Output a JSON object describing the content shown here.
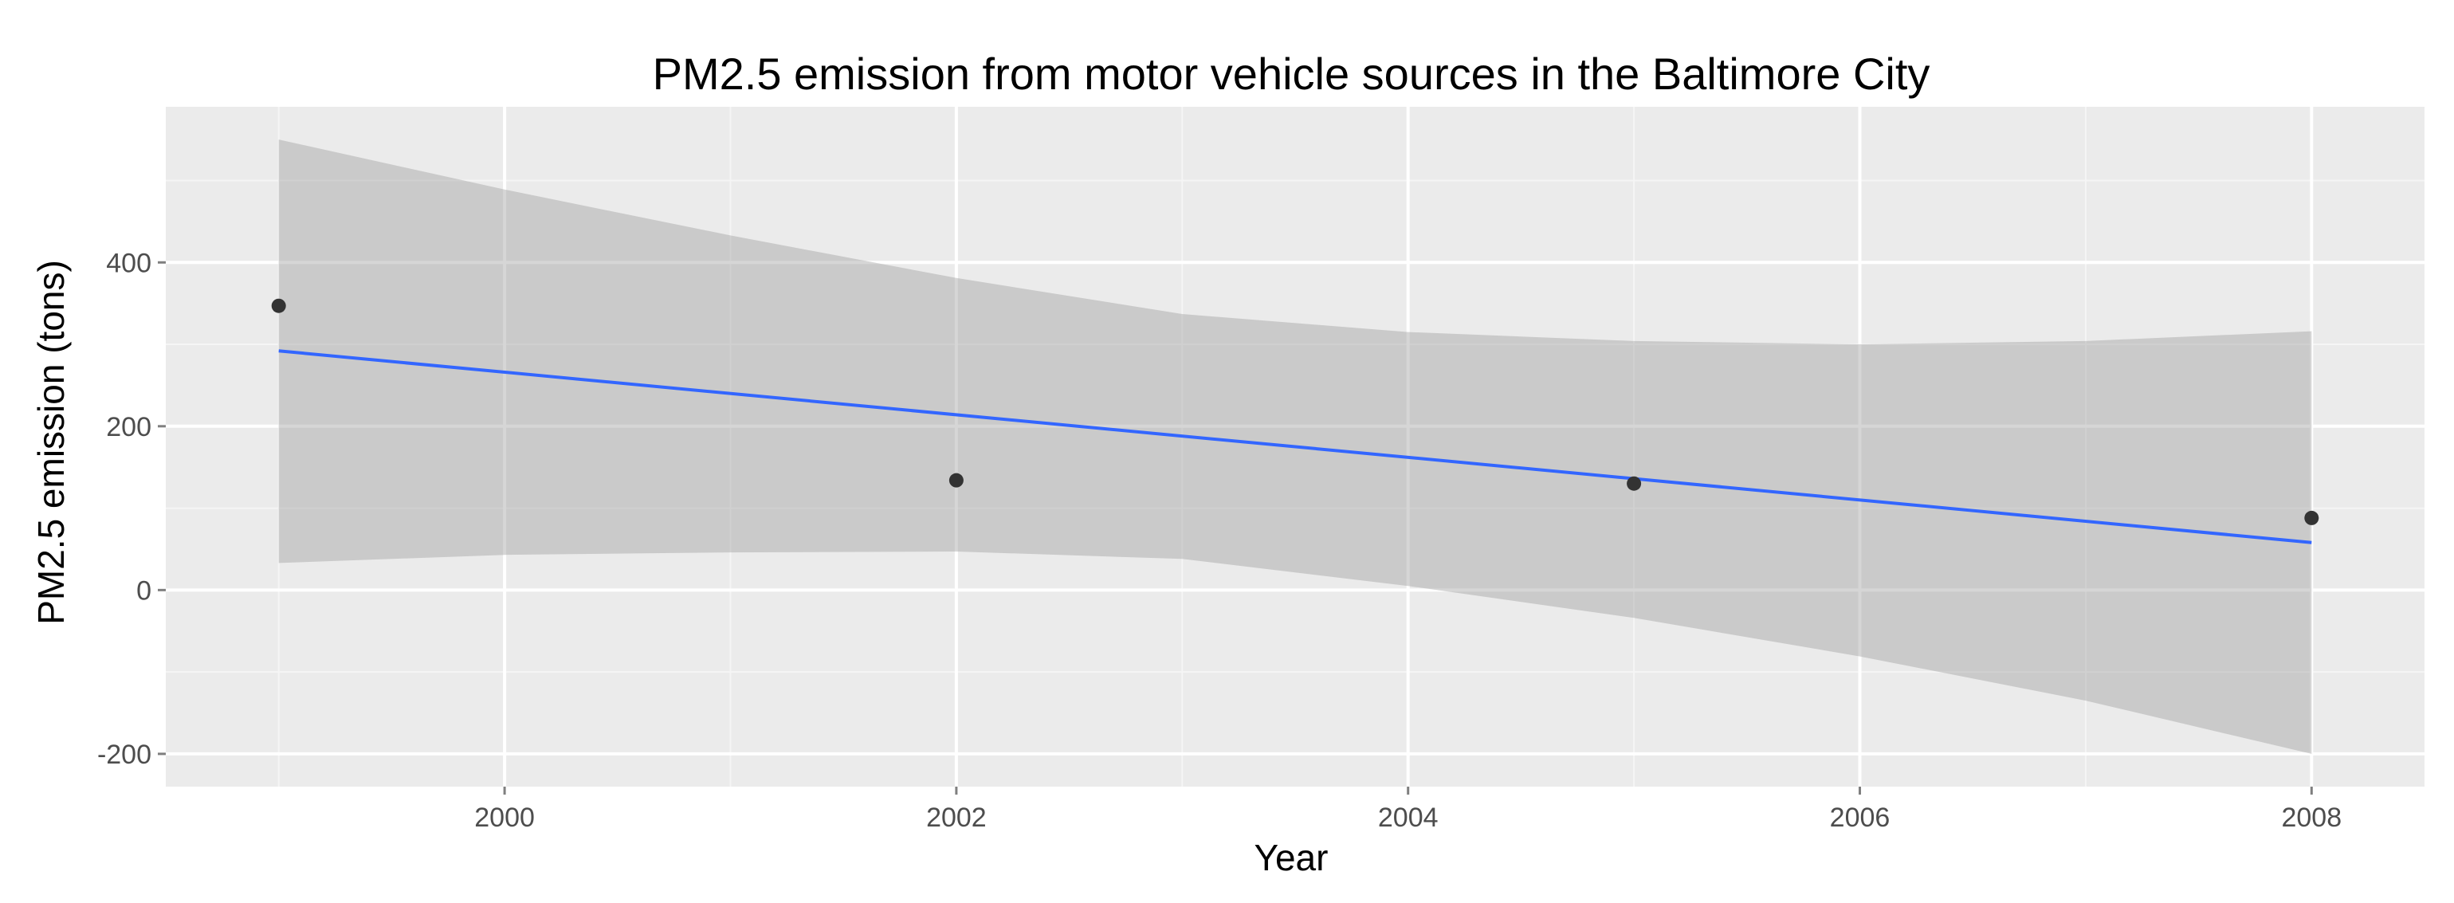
{
  "chart_data": {
    "type": "scatter",
    "title": "PM2.5 emission from motor vehicle sources in the Baltimore City",
    "xlabel": "Year",
    "ylabel": "PM2.5 emission (tons)",
    "xlim": [
      1998.5,
      2008.5
    ],
    "ylim": [
      -240,
      590
    ],
    "x_ticks": [
      2000,
      2002,
      2004,
      2006,
      2008
    ],
    "x_tick_labels": [
      "2000",
      "2002",
      "2004",
      "2006",
      "2008"
    ],
    "y_ticks": [
      -200,
      0,
      200,
      400
    ],
    "y_tick_labels": [
      "-200",
      "0",
      "200",
      "400"
    ],
    "grid": true,
    "points": [
      {
        "x": 1999,
        "y": 347
      },
      {
        "x": 2002,
        "y": 134
      },
      {
        "x": 2005,
        "y": 130
      },
      {
        "x": 2008,
        "y": 88
      }
    ],
    "fit_line": {
      "method": "linear",
      "x": [
        1999,
        2008
      ],
      "y": [
        292,
        58
      ]
    },
    "confidence_band": {
      "x": [
        1999,
        2000,
        2001,
        2002,
        2003,
        2004,
        2005,
        2006,
        2007,
        2008
      ],
      "upper": [
        550,
        489,
        433,
        381,
        337,
        315,
        304,
        300,
        304,
        316
      ],
      "lower": [
        33,
        43,
        46,
        47,
        38,
        5,
        -34,
        -81,
        -135,
        -200
      ]
    },
    "colors": {
      "panel": "#ebebeb",
      "grid_major": "#ffffff",
      "grid_minor": "#f5f5f5",
      "points": "#333333",
      "fit_line": "#3366ff",
      "band": "#999999"
    }
  }
}
